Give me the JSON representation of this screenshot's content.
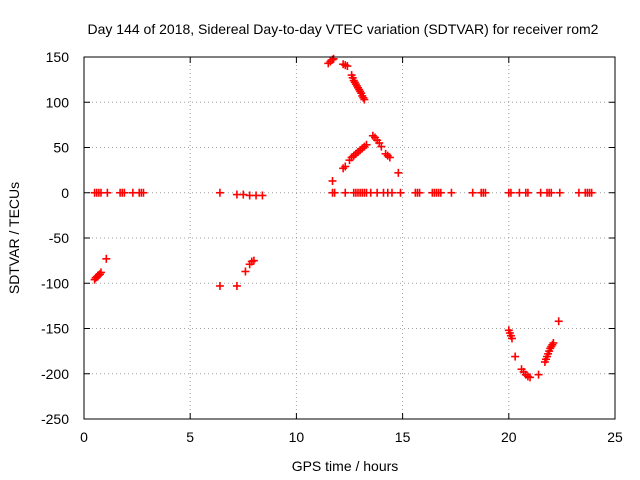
{
  "chart_data": {
    "type": "scatter",
    "title": "Day 144 of 2018, Sidereal Day-to-day VTEC variation (SDTVAR) for receiver rom2",
    "xlabel": "GPS time / hours",
    "ylabel": "SDTVAR / TECUs",
    "xlim": [
      0,
      25
    ],
    "ylim": [
      -250,
      150
    ],
    "xticks": [
      0,
      5,
      10,
      15,
      20,
      25
    ],
    "yticks": [
      -250,
      -200,
      -150,
      -100,
      -50,
      0,
      50,
      100,
      150
    ],
    "grid": true,
    "marker": "plus",
    "color": "#ff0000",
    "series": [
      {
        "name": "SDTVAR",
        "points": [
          [
            0.5,
            0
          ],
          [
            0.6,
            0
          ],
          [
            0.7,
            0
          ],
          [
            0.8,
            0
          ],
          [
            1.1,
            0
          ],
          [
            1.7,
            0
          ],
          [
            1.8,
            0
          ],
          [
            1.9,
            0
          ],
          [
            2.3,
            0
          ],
          [
            2.6,
            0
          ],
          [
            2.7,
            0
          ],
          [
            2.8,
            0
          ],
          [
            0.5,
            -96
          ],
          [
            0.55,
            -94
          ],
          [
            0.6,
            -93
          ],
          [
            0.65,
            -92
          ],
          [
            0.7,
            -91
          ],
          [
            0.75,
            -90
          ],
          [
            0.8,
            -88
          ],
          [
            1.05,
            -73
          ],
          [
            6.4,
            0
          ],
          [
            7.2,
            -2
          ],
          [
            7.5,
            -2
          ],
          [
            7.8,
            -3
          ],
          [
            8.1,
            -3
          ],
          [
            8.4,
            -3
          ],
          [
            6.4,
            -103
          ],
          [
            7.2,
            -103
          ],
          [
            7.6,
            -87
          ],
          [
            7.8,
            -79
          ],
          [
            7.9,
            -76
          ],
          [
            8.0,
            -75
          ],
          [
            11.5,
            143
          ],
          [
            11.6,
            145
          ],
          [
            11.7,
            147
          ],
          [
            11.75,
            148
          ],
          [
            12.2,
            142
          ],
          [
            12.3,
            141
          ],
          [
            12.4,
            140
          ],
          [
            12.6,
            130
          ],
          [
            12.65,
            127
          ],
          [
            12.7,
            124
          ],
          [
            12.75,
            122
          ],
          [
            12.8,
            120
          ],
          [
            12.85,
            118
          ],
          [
            12.9,
            116
          ],
          [
            12.95,
            114
          ],
          [
            13.0,
            112
          ],
          [
            13.05,
            110
          ],
          [
            13.1,
            107
          ],
          [
            13.15,
            105
          ],
          [
            13.2,
            103
          ],
          [
            11.7,
            13
          ],
          [
            12.2,
            27
          ],
          [
            12.3,
            29
          ],
          [
            12.5,
            36
          ],
          [
            12.6,
            39
          ],
          [
            12.7,
            41
          ],
          [
            12.8,
            43
          ],
          [
            12.9,
            45
          ],
          [
            13.0,
            47
          ],
          [
            13.1,
            49
          ],
          [
            13.2,
            51
          ],
          [
            13.3,
            53
          ],
          [
            13.6,
            63
          ],
          [
            13.7,
            61
          ],
          [
            13.8,
            58
          ],
          [
            13.9,
            55
          ],
          [
            14.0,
            51
          ],
          [
            14.2,
            43
          ],
          [
            14.3,
            41
          ],
          [
            14.4,
            39
          ],
          [
            14.8,
            22
          ],
          [
            11.7,
            0
          ],
          [
            11.8,
            0
          ],
          [
            12.3,
            0
          ],
          [
            12.7,
            0
          ],
          [
            12.8,
            0
          ],
          [
            12.9,
            0
          ],
          [
            13.0,
            0
          ],
          [
            13.1,
            0
          ],
          [
            13.2,
            0
          ],
          [
            13.3,
            0
          ],
          [
            13.5,
            0
          ],
          [
            13.8,
            0
          ],
          [
            14.1,
            0
          ],
          [
            14.3,
            0
          ],
          [
            14.5,
            0
          ],
          [
            14.9,
            0
          ],
          [
            15.6,
            0
          ],
          [
            15.7,
            0
          ],
          [
            15.8,
            0
          ],
          [
            16.4,
            0
          ],
          [
            16.5,
            0
          ],
          [
            16.6,
            0
          ],
          [
            16.7,
            0
          ],
          [
            16.8,
            0
          ],
          [
            17.3,
            0
          ],
          [
            18.3,
            0
          ],
          [
            18.7,
            0
          ],
          [
            18.8,
            0
          ],
          [
            18.9,
            0
          ],
          [
            20.0,
            0
          ],
          [
            20.1,
            0
          ],
          [
            20.5,
            0
          ],
          [
            20.8,
            0
          ],
          [
            20.9,
            0
          ],
          [
            21.5,
            0
          ],
          [
            21.8,
            0
          ],
          [
            21.9,
            0
          ],
          [
            22.0,
            0
          ],
          [
            22.4,
            0
          ],
          [
            23.3,
            0
          ],
          [
            23.6,
            0
          ],
          [
            23.7,
            0
          ],
          [
            23.8,
            0
          ],
          [
            23.9,
            0
          ],
          [
            20.0,
            -152
          ],
          [
            20.05,
            -155
          ],
          [
            20.1,
            -158
          ],
          [
            20.15,
            -161
          ],
          [
            20.3,
            -181
          ],
          [
            20.6,
            -195
          ],
          [
            20.7,
            -198
          ],
          [
            20.8,
            -201
          ],
          [
            20.9,
            -203
          ],
          [
            21.0,
            -204
          ],
          [
            21.4,
            -201
          ],
          [
            21.7,
            -187
          ],
          [
            21.75,
            -184
          ],
          [
            21.8,
            -181
          ],
          [
            21.85,
            -178
          ],
          [
            21.9,
            -175
          ],
          [
            21.95,
            -172
          ],
          [
            22.0,
            -170
          ],
          [
            22.05,
            -168
          ],
          [
            22.1,
            -166
          ],
          [
            22.35,
            -142
          ]
        ]
      }
    ]
  }
}
